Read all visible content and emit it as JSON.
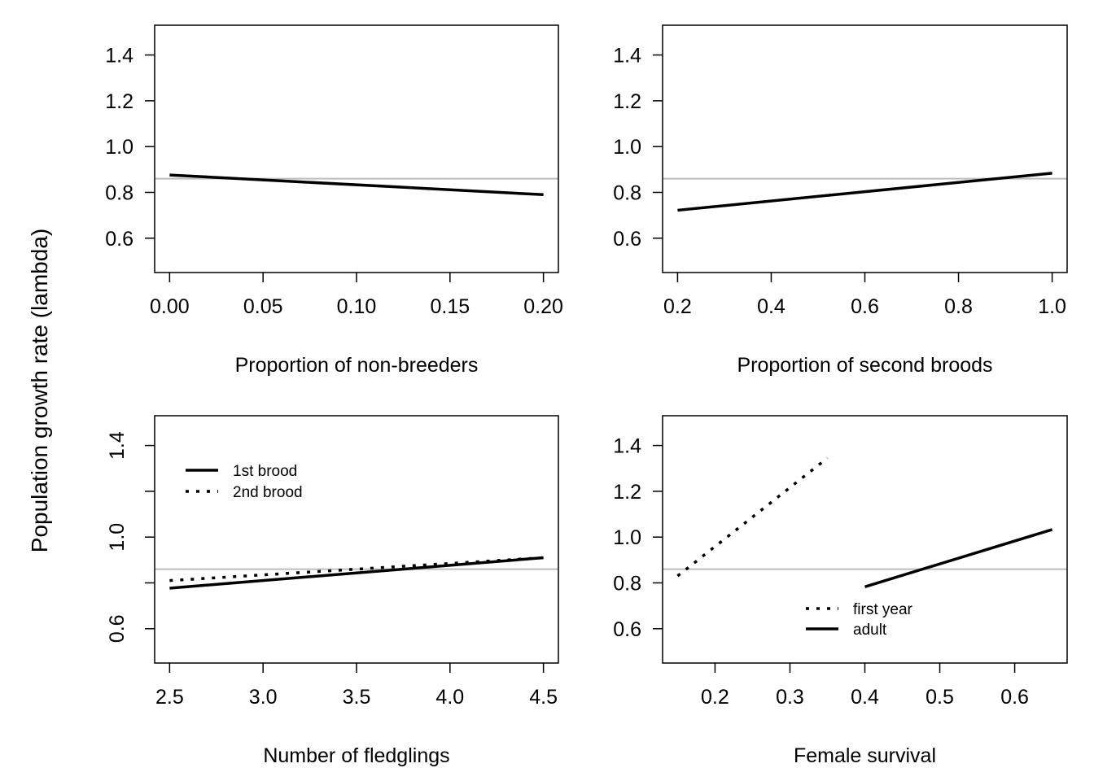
{
  "ylabel": "Population growth rate (lambda)",
  "colors": {
    "series": "#000000",
    "reference_line": "#bdbdbd",
    "frame": "#000000"
  },
  "chart_data": [
    {
      "type": "line",
      "panel": "top-left",
      "xlabel": "Proportion of non-breeders",
      "xlim": [
        -0.008,
        0.208
      ],
      "ylim": [
        0.45,
        1.53
      ],
      "xticks": [
        0.0,
        0.05,
        0.1,
        0.15,
        0.2
      ],
      "xtick_labels": [
        "0.00",
        "0.05",
        "0.10",
        "0.15",
        "0.20"
      ],
      "yticks": [
        0.6,
        0.8,
        1.0,
        1.2,
        1.4
      ],
      "ytick_labels": [
        "0.6",
        "0.8",
        "1.0",
        "1.2",
        "1.4"
      ],
      "ytick_rotated": false,
      "reference_line": 0.86,
      "series": [
        {
          "style": "solid",
          "x": [
            0.0,
            0.2
          ],
          "y": [
            0.876,
            0.79
          ]
        }
      ]
    },
    {
      "type": "line",
      "panel": "top-right",
      "xlabel": "Proportion of second broods",
      "xlim": [
        0.168,
        1.032
      ],
      "ylim": [
        0.45,
        1.53
      ],
      "xticks": [
        0.2,
        0.4,
        0.6,
        0.8,
        1.0
      ],
      "xtick_labels": [
        "0.2",
        "0.4",
        "0.6",
        "0.8",
        "1.0"
      ],
      "yticks": [
        0.6,
        0.8,
        1.0,
        1.2,
        1.4
      ],
      "ytick_labels": [
        "0.6",
        "0.8",
        "1.0",
        "1.2",
        "1.4"
      ],
      "ytick_rotated": false,
      "reference_line": 0.86,
      "series": [
        {
          "style": "solid",
          "x": [
            0.2,
            1.0
          ],
          "y": [
            0.722,
            0.884
          ]
        }
      ]
    },
    {
      "type": "line",
      "panel": "bottom-left",
      "xlabel": "Number of fledglings",
      "xlim": [
        2.42,
        4.58
      ],
      "ylim": [
        0.45,
        1.53
      ],
      "xticks": [
        2.5,
        3.0,
        3.5,
        4.0,
        4.5
      ],
      "xtick_labels": [
        "2.5",
        "3.0",
        "3.5",
        "4.0",
        "4.5"
      ],
      "yticks": [
        0.6,
        1.0,
        1.4
      ],
      "ytick_labels": [
        "0.6",
        "1.0",
        "1.4"
      ],
      "minor_yticks": [
        0.8,
        1.2
      ],
      "ytick_rotated": true,
      "reference_line": 0.86,
      "legend": {
        "position": "top-left"
      },
      "series": [
        {
          "name": "1st brood",
          "style": "solid",
          "x": [
            2.5,
            4.5
          ],
          "y": [
            0.777,
            0.91
          ]
        },
        {
          "name": "2nd brood",
          "style": "dotted",
          "x": [
            2.5,
            4.5
          ],
          "y": [
            0.81,
            0.91
          ]
        }
      ]
    },
    {
      "type": "line",
      "panel": "bottom-right",
      "xlabel": "Female survival",
      "xlim": [
        0.13,
        0.67
      ],
      "ylim": [
        0.45,
        1.53
      ],
      "xticks": [
        0.2,
        0.3,
        0.4,
        0.5,
        0.6
      ],
      "xtick_labels": [
        "0.2",
        "0.3",
        "0.4",
        "0.5",
        "0.6"
      ],
      "yticks": [
        0.6,
        0.8,
        1.0,
        1.2,
        1.4
      ],
      "ytick_labels": [
        "0.6",
        "0.8",
        "1.0",
        "1.2",
        "1.4"
      ],
      "ytick_rotated": false,
      "reference_line": 0.86,
      "legend": {
        "position": "bottom-center"
      },
      "series": [
        {
          "name": "first year",
          "style": "dotted",
          "x": [
            0.15,
            0.35
          ],
          "y": [
            0.83,
            1.345
          ]
        },
        {
          "name": "adult",
          "style": "solid",
          "x": [
            0.4,
            0.65
          ],
          "y": [
            0.783,
            1.033
          ]
        }
      ]
    }
  ]
}
